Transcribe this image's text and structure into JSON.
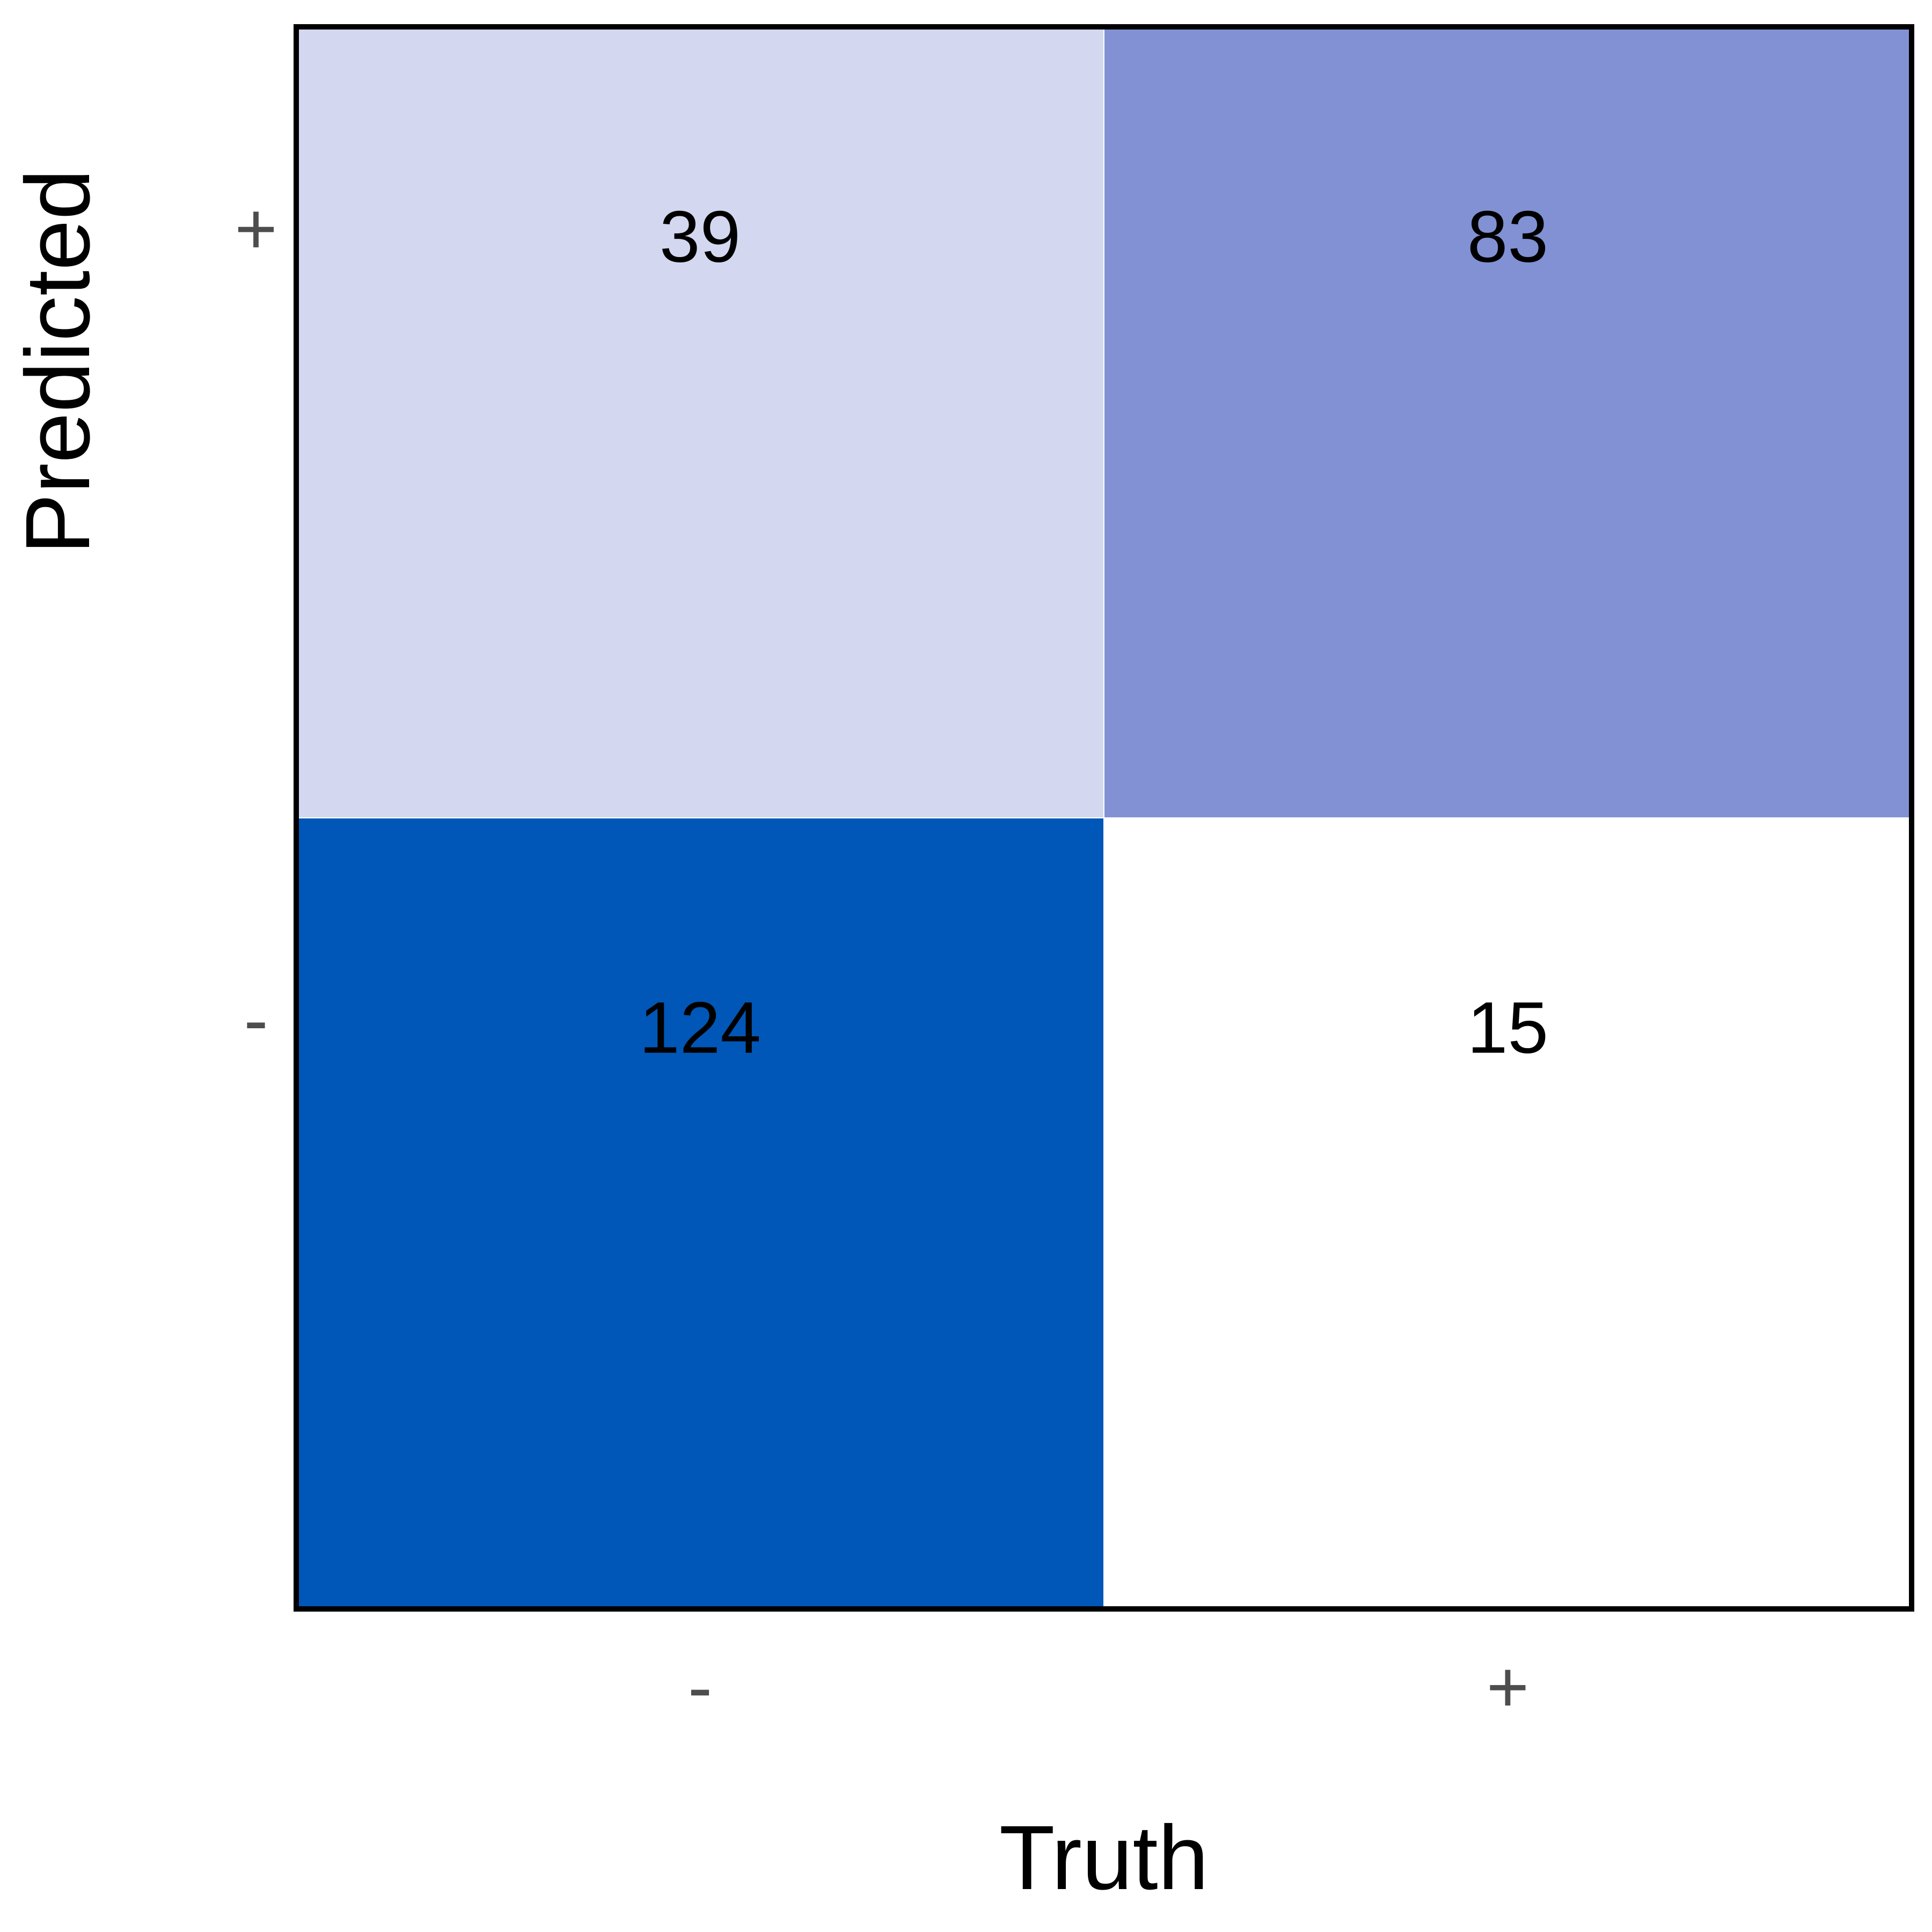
{
  "chart_data": {
    "type": "heatmap",
    "xlabel": "Truth",
    "ylabel": "Predicted",
    "x_categories": [
      "-",
      "+"
    ],
    "y_categories": [
      "+",
      "-"
    ],
    "values": [
      [
        39,
        83
      ],
      [
        124,
        15
      ]
    ],
    "color_scale": {
      "low": "#ffffff",
      "high": "#0057b7",
      "min": 15,
      "max": 124
    },
    "grid": false,
    "legend": "none"
  }
}
